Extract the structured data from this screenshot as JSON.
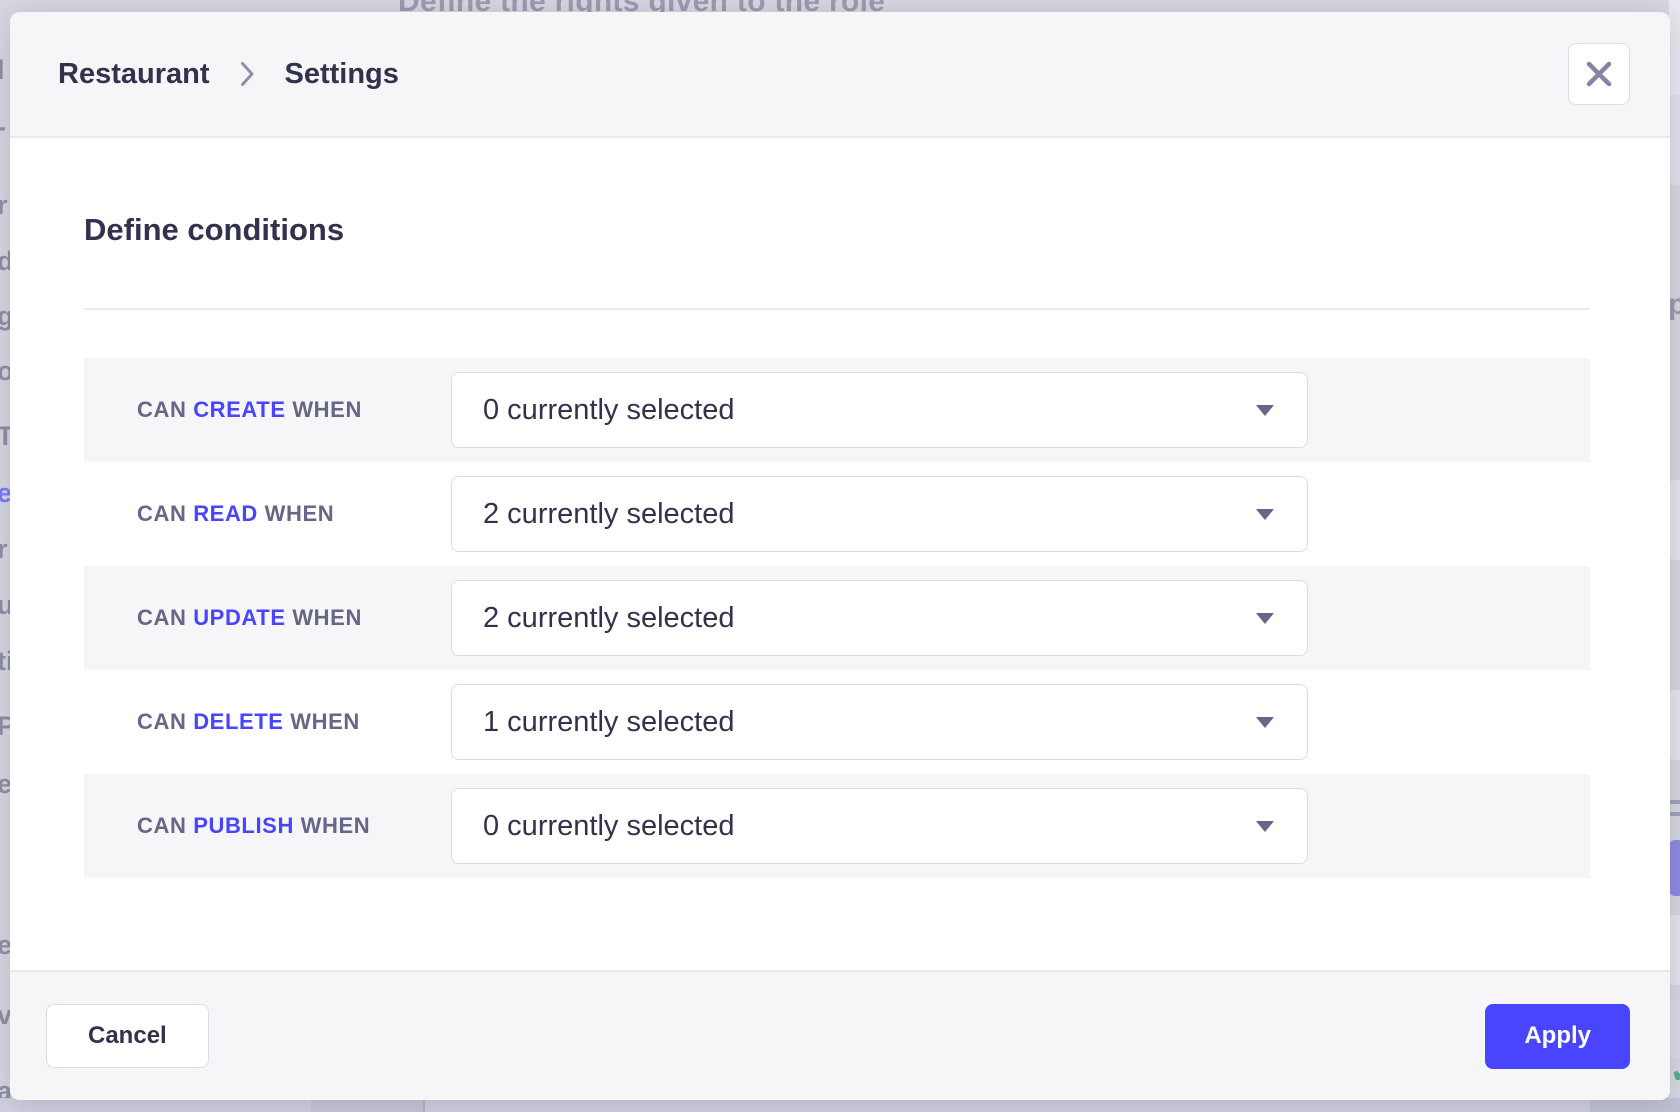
{
  "overlay": {
    "page_subtitle": "Define the rights given to the role",
    "left_edge_fragments": [
      "l",
      "-",
      "r",
      "d",
      "g",
      "o",
      "T",
      "e",
      "r",
      "u",
      "ti",
      "P",
      "e",
      "e",
      "v",
      "a"
    ],
    "right_edge_fragment": "p",
    "right_check_fragment": "✓"
  },
  "modal": {
    "breadcrumb": {
      "root": "Restaurant",
      "current": "Settings"
    },
    "title": "Define conditions",
    "conditions": [
      {
        "prefix": "CAN",
        "action": "CREATE",
        "suffix": "WHEN",
        "selected": "0 currently selected"
      },
      {
        "prefix": "CAN",
        "action": "READ",
        "suffix": "WHEN",
        "selected": "2 currently selected"
      },
      {
        "prefix": "CAN",
        "action": "UPDATE",
        "suffix": "WHEN",
        "selected": "2 currently selected"
      },
      {
        "prefix": "CAN",
        "action": "DELETE",
        "suffix": "WHEN",
        "selected": "1 currently selected"
      },
      {
        "prefix": "CAN",
        "action": "PUBLISH",
        "suffix": "WHEN",
        "selected": "0 currently selected"
      }
    ],
    "footer": {
      "cancel_label": "Cancel",
      "apply_label": "Apply"
    }
  },
  "colors": {
    "accent": "#4945ff",
    "text_dark": "#32324d",
    "text_muted": "#666687",
    "icon_muted": "#8e8ea9",
    "alt_row_bg": "#f6f6f9",
    "border": "#dcdce4",
    "divider": "#eaeaef",
    "overlay_bg": "#d8d8e2"
  }
}
